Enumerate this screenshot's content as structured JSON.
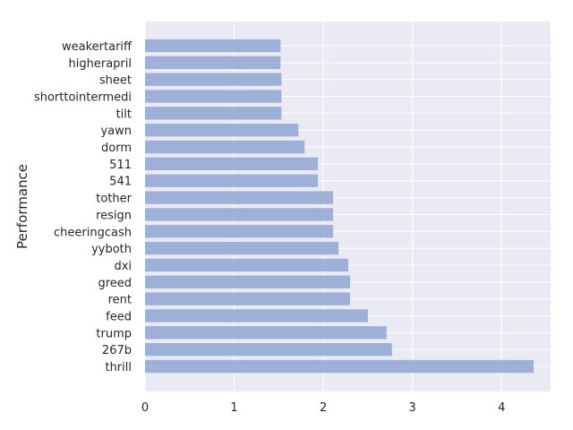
{
  "chart_data": {
    "type": "bar",
    "orientation": "horizontal",
    "title": "",
    "xlabel": "",
    "ylabel": "Performance",
    "categories": [
      "weakertariff",
      "higherapril",
      "sheet",
      "shorttointermedi",
      "tilt",
      "yawn",
      "dorm",
      "511",
      "541",
      "tother",
      "resign",
      "cheeringcash",
      "yyboth",
      "dxi",
      "greed",
      "rent",
      "feed",
      "trump",
      "267b",
      "thrill"
    ],
    "values": [
      1.52,
      1.52,
      1.53,
      1.53,
      1.53,
      1.72,
      1.79,
      1.94,
      1.94,
      2.11,
      2.11,
      2.11,
      2.17,
      2.28,
      2.3,
      2.3,
      2.5,
      2.71,
      2.77,
      4.36
    ],
    "xlim": [
      0,
      4.55
    ],
    "xticks": [
      0,
      1,
      2,
      3,
      4
    ],
    "grid": true,
    "colors": {
      "bar": "#8fa7d3",
      "plot_background": "#eaeaf2",
      "grid": "#ffffff",
      "text": "#262626"
    }
  }
}
